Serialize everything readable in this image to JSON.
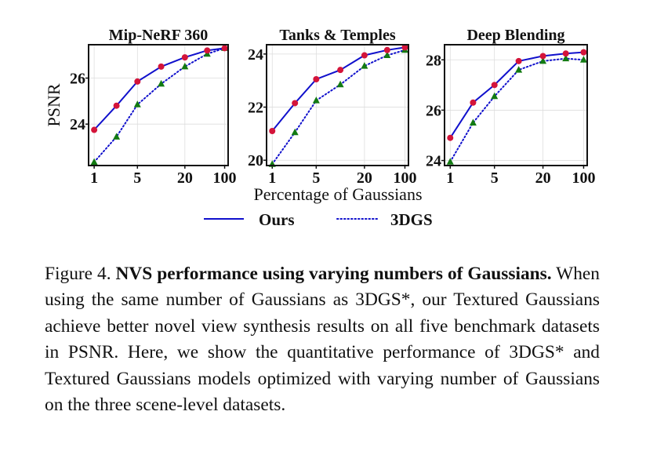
{
  "chart_data": [
    {
      "type": "line",
      "title": "Mip-NeRF 360",
      "ylabel": "PSNR",
      "xticks": [
        "1",
        "5",
        "20",
        "100"
      ],
      "ylim": [
        22.2,
        27.45
      ],
      "yticks": [
        24,
        26
      ],
      "grid": true,
      "series": [
        {
          "name": "Ours",
          "values": [
            23.75,
            24.8,
            25.85,
            26.5,
            26.9,
            27.2,
            27.3
          ]
        },
        {
          "name": "3DGS",
          "values": [
            22.35,
            23.45,
            24.85,
            25.75,
            26.5,
            27.05,
            27.3
          ]
        }
      ]
    },
    {
      "type": "line",
      "title": "Tanks & Temples",
      "ylabel": "",
      "xticks": [
        "1",
        "5",
        "20",
        "100"
      ],
      "ylim": [
        19.8,
        24.35
      ],
      "yticks": [
        20,
        22,
        24
      ],
      "grid": true,
      "series": [
        {
          "name": "Ours",
          "values": [
            21.1,
            22.15,
            23.05,
            23.4,
            23.95,
            24.15,
            24.25
          ]
        },
        {
          "name": "3DGS",
          "values": [
            19.85,
            21.05,
            22.25,
            22.85,
            23.55,
            23.95,
            24.15
          ]
        }
      ]
    },
    {
      "type": "line",
      "title": "Deep Blending",
      "ylabel": "",
      "xticks": [
        "1",
        "5",
        "20",
        "100"
      ],
      "ylim": [
        23.8,
        28.6
      ],
      "yticks": [
        24,
        26,
        28
      ],
      "grid": true,
      "series": [
        {
          "name": "Ours",
          "values": [
            24.9,
            26.3,
            27.0,
            27.95,
            28.15,
            28.25,
            28.3
          ]
        },
        {
          "name": "3DGS",
          "values": [
            23.95,
            25.5,
            26.55,
            27.6,
            27.95,
            28.05,
            28.0
          ]
        }
      ]
    }
  ],
  "shared": {
    "xlabel": "Percentage of Gaussians",
    "legend": [
      {
        "name": "Ours",
        "style": "solid",
        "color": "#1010cc"
      },
      {
        "name": "3DGS",
        "style": "dotted",
        "color": "#1010cc"
      }
    ],
    "marker_colors": {
      "ours": "#d4143a",
      "3dgs": "#127a12"
    }
  },
  "caption": {
    "lead": "Figure 4.",
    "title": "NVS performance using varying numbers of Gaussians.",
    "body": " When using the same number of Gaussians as 3DGS*, our Textured Gaussians achieve better novel view synthesis results on all five benchmark datasets in PSNR. Here, we show the quantitative performance of 3DGS* and Textured Gaussians models optimized with varying number of Gaussians on the three scene-level datasets."
  }
}
